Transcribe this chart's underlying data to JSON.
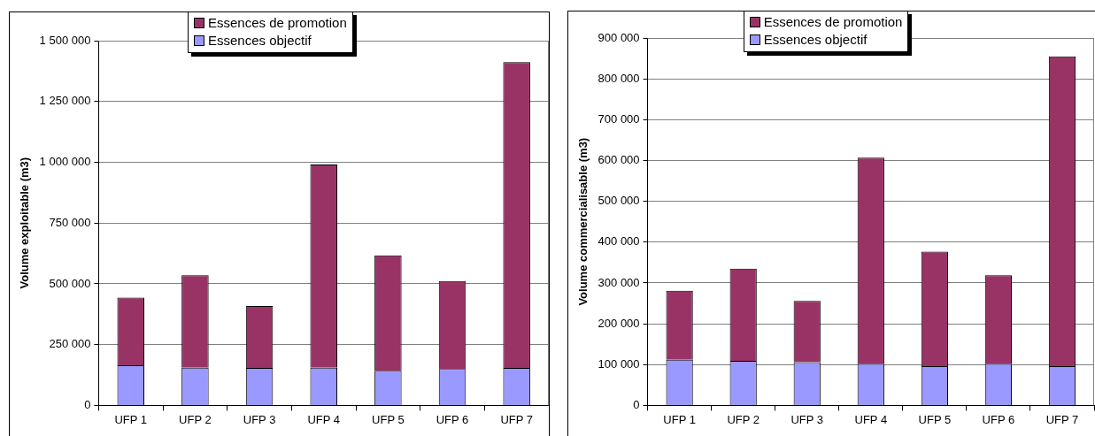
{
  "chart_data": [
    {
      "type": "bar",
      "ylabel": "Volume exploitable (m3)",
      "categories": [
        "UFP 1",
        "UFP 2",
        "UFP 3",
        "UFP 4",
        "UFP 5",
        "UFP 6",
        "UFP 7"
      ],
      "stacked": true,
      "series": [
        {
          "name": "Essences objectif",
          "color": "#9999ff",
          "values": [
            165000,
            155000,
            154000,
            155000,
            142000,
            150000,
            154000
          ]
        },
        {
          "name": "Essences de promotion",
          "color": "#993366",
          "values": [
            278000,
            380000,
            255000,
            836000,
            475000,
            362000,
            1258000
          ]
        }
      ],
      "ylim": [
        0,
        1500000
      ],
      "yticks": [
        {
          "value": 0,
          "label": "0"
        },
        {
          "value": 250000,
          "label": "250 000"
        },
        {
          "value": 500000,
          "label": "500 000"
        },
        {
          "value": 750000,
          "label": "750 000"
        },
        {
          "value": 1000000,
          "label": "1 000 000"
        },
        {
          "value": 1250000,
          "label": "1 250 000"
        },
        {
          "value": 1500000,
          "label": "1 500 000"
        }
      ],
      "grid": "y",
      "legend": "top"
    },
    {
      "type": "bar",
      "ylabel": "Volume commercialisable (m3)",
      "categories": [
        "UFP 1",
        "UFP 2",
        "UFP 3",
        "UFP 4",
        "UFP 5",
        "UFP 6",
        "UFP 7"
      ],
      "stacked": true,
      "series": [
        {
          "name": "Essences objectif",
          "color": "#9999ff",
          "values": [
            112000,
            109000,
            106000,
            102000,
            96000,
            102000,
            96000
          ]
        },
        {
          "name": "Essences de promotion",
          "color": "#993366",
          "values": [
            169000,
            226000,
            150000,
            505000,
            281000,
            217000,
            759000
          ]
        }
      ],
      "ylim": [
        0,
        900000
      ],
      "yticks": [
        {
          "value": 0,
          "label": "0"
        },
        {
          "value": 100000,
          "label": "100 000"
        },
        {
          "value": 200000,
          "label": "200 000"
        },
        {
          "value": 300000,
          "label": "300 000"
        },
        {
          "value": 400000,
          "label": "400 000"
        },
        {
          "value": 500000,
          "label": "500 000"
        },
        {
          "value": 600000,
          "label": "600 000"
        },
        {
          "value": 700000,
          "label": "700 000"
        },
        {
          "value": 800000,
          "label": "800 000"
        },
        {
          "value": 900000,
          "label": "900 000"
        }
      ],
      "grid": "y",
      "legend": "top"
    }
  ]
}
